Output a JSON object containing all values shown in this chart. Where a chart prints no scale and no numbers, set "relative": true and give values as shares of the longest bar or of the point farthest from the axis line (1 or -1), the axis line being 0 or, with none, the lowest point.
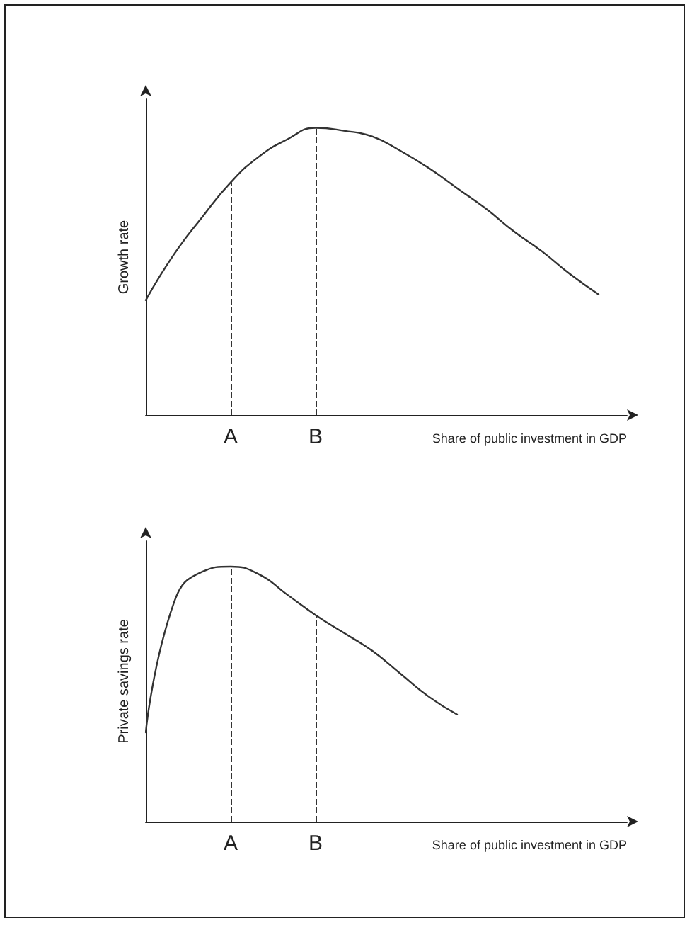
{
  "chart_data": [
    {
      "type": "line",
      "relative": true,
      "ylabel": "Growth rate",
      "xlabel": "Share of public investment in GDP",
      "categories": [
        null,
        null,
        null,
        "A",
        null,
        null,
        "B",
        null,
        null,
        null,
        null,
        null,
        null,
        null,
        null,
        null,
        null,
        null
      ],
      "series": [
        {
          "color": "#333333",
          "values": [
            0.4,
            0.56,
            0.69,
            0.81,
            0.9,
            0.96,
            1.0,
            0.99,
            0.97,
            0.92,
            0.86,
            0.79,
            0.72,
            0.64,
            0.57,
            0.49,
            0.42,
            null
          ]
        }
      ],
      "ref_lines": [
        {
          "axis": "x",
          "value": "A",
          "line_style": "dashed",
          "color": "#333333"
        },
        {
          "axis": "x",
          "value": "B",
          "line_style": "dashed",
          "color": "#333333"
        }
      ],
      "marker": "none",
      "line_style": "solid",
      "grid": false
    },
    {
      "type": "line",
      "relative": true,
      "ylabel": "Private savings rate",
      "xlabel": "Share of public investment in GDP",
      "categories": [
        null,
        null,
        null,
        "A",
        null,
        null,
        "B",
        null,
        null,
        null,
        null,
        null,
        null,
        null,
        null,
        null,
        null,
        null
      ],
      "series": [
        {
          "color": "#333333",
          "values": [
            0.35,
            0.86,
            0.98,
            1.0,
            0.97,
            0.89,
            0.81,
            0.74,
            0.67,
            0.58,
            0.49,
            0.42,
            null,
            null,
            null,
            null,
            null,
            null
          ]
        }
      ],
      "ref_lines": [
        {
          "axis": "x",
          "value": "A",
          "line_style": "dashed",
          "color": "#333333"
        },
        {
          "axis": "x",
          "value": "B",
          "line_style": "dashed",
          "color": "#333333"
        }
      ],
      "marker": "none",
      "line_style": "solid",
      "grid": false
    }
  ]
}
